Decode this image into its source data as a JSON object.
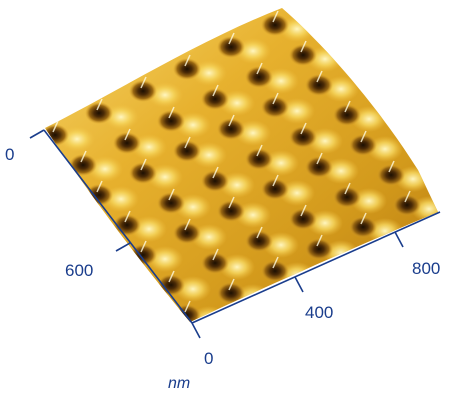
{
  "image": {
    "kind": "AFM 3D surface topography",
    "colormap": [
      "#3a1f05",
      "#8a5a10",
      "#d89a20",
      "#f2c840",
      "#fff2a0"
    ],
    "unit": "nm",
    "left_axis_ticks": [
      "0",
      "600"
    ],
    "right_axis_ticks": [
      "400",
      "800"
    ],
    "origin_label": "0"
  }
}
